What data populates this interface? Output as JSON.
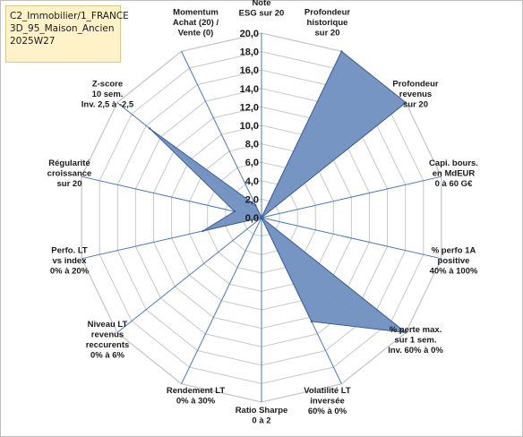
{
  "header": {
    "lines": [
      "C2_Immobilier/1_FRANCE",
      "3D_95_Maison_Ancien",
      "2025W27"
    ]
  },
  "chart_data": {
    "type": "radar",
    "grid": true,
    "rmin": 0,
    "rmax": 20,
    "tick_step": 2,
    "tick_labels": [
      "0,0",
      "2,0",
      "4,0",
      "6,0",
      "8,0",
      "10,0",
      "12,0",
      "14,0",
      "16,0",
      "18,0",
      "20,0"
    ],
    "axes": [
      {
        "label": [
          "Note",
          "ESG sur 20"
        ],
        "value": 0
      },
      {
        "label": [
          "Profondeur",
          "historique",
          "sur 20"
        ],
        "value": 20
      },
      {
        "label": [
          "Profondeur",
          "revenus",
          "sur 20"
        ],
        "value": 20
      },
      {
        "label": [
          "Capi. bours.",
          "en MdEUR",
          "0 à 60 G€"
        ],
        "value": 0
      },
      {
        "label": [
          "% perfo 1A",
          "positive",
          "40% à 100%"
        ],
        "value": 0
      },
      {
        "label": [
          "% perte max.",
          "sur 1 sem.",
          "Inv. 60% à 0%"
        ],
        "value": 20
      },
      {
        "label": [
          "Volatilité LT",
          "inversée",
          "60% à 0%"
        ],
        "value": 12.5
      },
      {
        "label": [
          "Ratio Sharpe",
          "0 à 2"
        ],
        "value": 0
      },
      {
        "label": [
          "Rendement LT",
          "0% à 30%"
        ],
        "value": 0
      },
      {
        "label": [
          "Niveau LT",
          "revenus",
          "reccurents",
          "0% à 6%"
        ],
        "value": 0
      },
      {
        "label": [
          "Perfo. LT",
          "vs index",
          "0% à 20%"
        ],
        "value": 6.5
      },
      {
        "label": [
          "Régularité",
          "croissance",
          "sur 20"
        ],
        "value": 3
      },
      {
        "label": [
          "Z-score",
          "10 sem.",
          "Inv. 2,5 à -2,5"
        ],
        "value": 15.5
      },
      {
        "label": [
          "Momentum",
          "Achat (20) /",
          "Vente (0)"
        ],
        "value": 1.5
      }
    ],
    "colors": {
      "fill": "#6f8fc0",
      "stroke": "#3f5f95",
      "grid": "#c8c8c8",
      "spoke": "#4a78b8"
    }
  }
}
